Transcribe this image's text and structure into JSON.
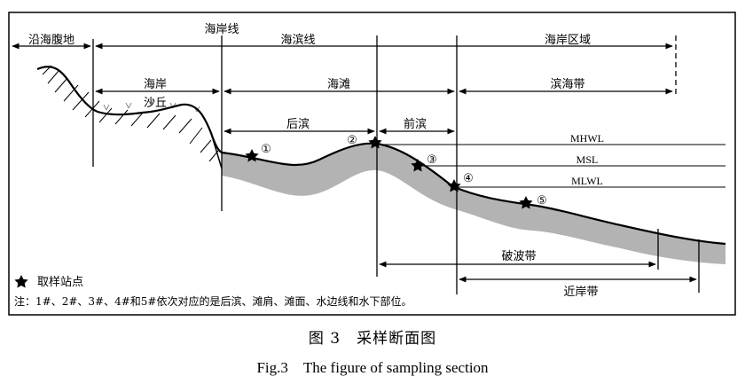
{
  "zones": {
    "coastal_hinterland": "沿海腹地",
    "shoreline": "海岸线",
    "beach_line": "海滨线",
    "coastal_zone": "海岸区域",
    "coast": "海岸",
    "dune": "沙丘",
    "beach": "海滩",
    "littoral_zone": "滨海带",
    "backshore": "后滨",
    "foreshore": "前滨",
    "breaker_zone": "破波带",
    "nearshore_zone": "近岸带"
  },
  "water_levels": {
    "mhwl": "MHWL",
    "msl": "MSL",
    "mlwl": "MLWL"
  },
  "stations": [
    "①",
    "②",
    "③",
    "④",
    "⑤"
  ],
  "legend": {
    "station_label": "取样站点",
    "note": "注：1#、2#、3#、4#和5#依次对应的是后滨、滩肩、滩面、水边线和水下部位。"
  },
  "caption": {
    "chinese": "图 3　采样断面图",
    "english": "Fig.3　The figure of sampling section"
  }
}
